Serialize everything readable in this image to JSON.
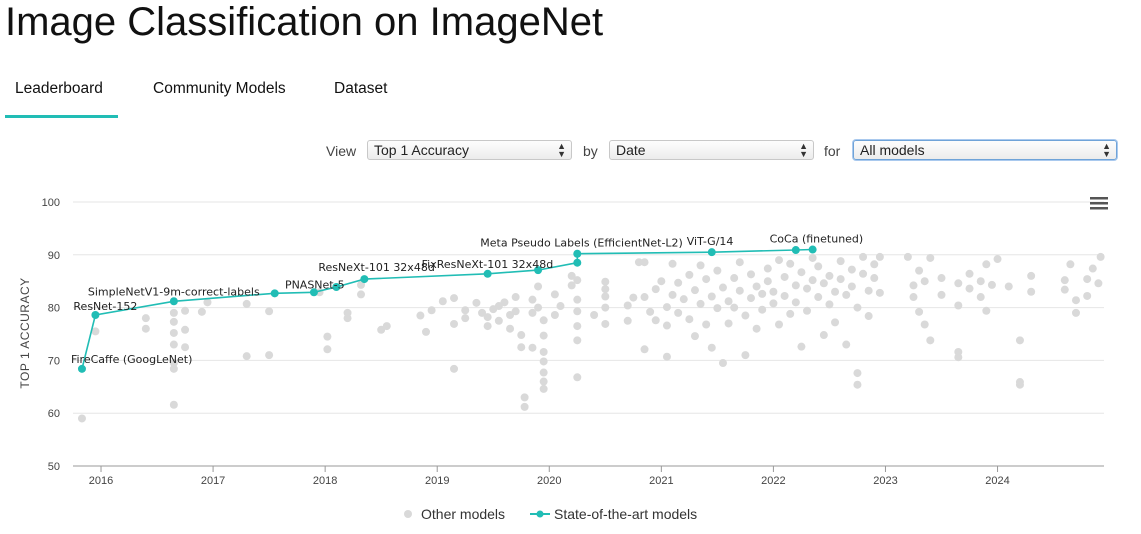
{
  "page": {
    "title": "Image Classification on ImageNet",
    "tabs": [
      {
        "label": "Leaderboard",
        "active": true
      },
      {
        "label": "Community Models",
        "active": false
      },
      {
        "label": "Dataset",
        "active": false
      }
    ]
  },
  "controls": {
    "view_label": "View",
    "view_value": "Top 1 Accuracy",
    "by_label": "by",
    "by_value": "Date",
    "for_label": "for",
    "for_value": "All models"
  },
  "colors": {
    "accent": "#21bdb5",
    "other_models": "#d9d9d9",
    "grid": "#e6e6e6"
  },
  "icons": {
    "chart_menu": "hamburger-menu-icon"
  },
  "chart_data": {
    "type": "scatter",
    "ylabel": "TOP 1 ACCURACY",
    "xlabel": "",
    "ylim": [
      50,
      100
    ],
    "yticks": [
      50,
      60,
      70,
      80,
      90,
      100
    ],
    "xlim": [
      2015.75,
      2024.95
    ],
    "xticks": [
      2016,
      2017,
      2018,
      2019,
      2020,
      2021,
      2022,
      2023,
      2024
    ],
    "grid": true,
    "legend_position": "bottom-center",
    "series": [
      {
        "name": "Other models",
        "kind": "scatter",
        "points": [
          [
            2015.83,
            59.0
          ],
          [
            2015.95,
            75.5
          ],
          [
            2016.4,
            78.0
          ],
          [
            2016.4,
            76.0
          ],
          [
            2016.65,
            61.6
          ],
          [
            2016.65,
            68.4
          ],
          [
            2016.65,
            69.5
          ],
          [
            2016.65,
            73.0
          ],
          [
            2016.65,
            75.2
          ],
          [
            2016.65,
            77.3
          ],
          [
            2016.65,
            79.0
          ],
          [
            2016.75,
            72.5
          ],
          [
            2016.75,
            75.8
          ],
          [
            2016.75,
            79.4
          ],
          [
            2016.9,
            79.2
          ],
          [
            2016.95,
            81.0
          ],
          [
            2017.3,
            70.8
          ],
          [
            2017.3,
            80.7
          ],
          [
            2017.5,
            71.0
          ],
          [
            2017.5,
            79.3
          ],
          [
            2017.95,
            82.9
          ],
          [
            2018.02,
            72.1
          ],
          [
            2018.02,
            74.5
          ],
          [
            2018.2,
            78.0
          ],
          [
            2018.2,
            79.0
          ],
          [
            2018.32,
            82.5
          ],
          [
            2018.32,
            84.3
          ],
          [
            2018.5,
            75.8
          ],
          [
            2018.55,
            76.5
          ],
          [
            2018.85,
            78.5
          ],
          [
            2018.9,
            75.4
          ],
          [
            2018.95,
            79.5
          ],
          [
            2019.05,
            81.2
          ],
          [
            2019.15,
            81.8
          ],
          [
            2019.15,
            76.9
          ],
          [
            2019.15,
            68.4
          ],
          [
            2019.25,
            79.5
          ],
          [
            2019.25,
            78.0
          ],
          [
            2019.35,
            80.9
          ],
          [
            2019.4,
            79.0
          ],
          [
            2019.45,
            78.2
          ],
          [
            2019.45,
            76.5
          ],
          [
            2019.5,
            79.7
          ],
          [
            2019.55,
            80.3
          ],
          [
            2019.55,
            77.5
          ],
          [
            2019.6,
            81.0
          ],
          [
            2019.65,
            78.6
          ],
          [
            2019.65,
            76.0
          ],
          [
            2019.7,
            82.0
          ],
          [
            2019.7,
            79.3
          ],
          [
            2019.75,
            72.5
          ],
          [
            2019.75,
            74.8
          ],
          [
            2019.78,
            61.2
          ],
          [
            2019.78,
            63.0
          ],
          [
            2019.85,
            79.0
          ],
          [
            2019.85,
            81.5
          ],
          [
            2019.85,
            72.4
          ],
          [
            2019.9,
            84.0
          ],
          [
            2019.9,
            80.0
          ],
          [
            2019.95,
            77.6
          ],
          [
            2019.95,
            74.7
          ],
          [
            2019.95,
            66.0
          ],
          [
            2019.95,
            64.6
          ],
          [
            2019.95,
            67.7
          ],
          [
            2019.95,
            69.8
          ],
          [
            2019.95,
            71.6
          ],
          [
            2020.05,
            82.5
          ],
          [
            2020.05,
            78.6
          ],
          [
            2020.1,
            80.3
          ],
          [
            2020.2,
            86.0
          ],
          [
            2020.2,
            84.2
          ],
          [
            2020.25,
            85.2
          ],
          [
            2020.25,
            81.5
          ],
          [
            2020.25,
            79.3
          ],
          [
            2020.25,
            76.5
          ],
          [
            2020.25,
            73.8
          ],
          [
            2020.25,
            66.8
          ],
          [
            2020.4,
            78.6
          ],
          [
            2020.5,
            80.0
          ],
          [
            2020.5,
            82.1
          ],
          [
            2020.5,
            83.5
          ],
          [
            2020.5,
            84.9
          ],
          [
            2020.5,
            76.9
          ],
          [
            2020.7,
            77.5
          ],
          [
            2020.7,
            80.4
          ],
          [
            2020.75,
            81.9
          ],
          [
            2020.8,
            88.6
          ],
          [
            2020.85,
            88.6
          ],
          [
            2020.85,
            72.1
          ],
          [
            2020.85,
            82.0
          ],
          [
            2020.9,
            79.2
          ],
          [
            2020.95,
            77.6
          ],
          [
            2020.95,
            83.5
          ],
          [
            2021.0,
            85.0
          ],
          [
            2021.05,
            80.1
          ],
          [
            2021.05,
            76.6
          ],
          [
            2021.05,
            70.7
          ],
          [
            2021.1,
            88.3
          ],
          [
            2021.1,
            82.4
          ],
          [
            2021.15,
            84.7
          ],
          [
            2021.15,
            79.0
          ],
          [
            2021.2,
            81.6
          ],
          [
            2021.25,
            86.2
          ],
          [
            2021.25,
            77.8
          ],
          [
            2021.3,
            74.6
          ],
          [
            2021.3,
            83.3
          ],
          [
            2021.35,
            80.7
          ],
          [
            2021.35,
            88.0
          ],
          [
            2021.4,
            85.4
          ],
          [
            2021.4,
            76.8
          ],
          [
            2021.45,
            82.1
          ],
          [
            2021.45,
            72.4
          ],
          [
            2021.5,
            79.9
          ],
          [
            2021.5,
            87.0
          ],
          [
            2021.55,
            83.8
          ],
          [
            2021.55,
            69.5
          ],
          [
            2021.6,
            81.2
          ],
          [
            2021.6,
            77.0
          ],
          [
            2021.65,
            85.6
          ],
          [
            2021.65,
            80.0
          ],
          [
            2021.7,
            83.2
          ],
          [
            2021.7,
            88.6
          ],
          [
            2021.75,
            78.5
          ],
          [
            2021.75,
            71.0
          ],
          [
            2021.8,
            81.8
          ],
          [
            2021.8,
            86.3
          ],
          [
            2021.85,
            84.0
          ],
          [
            2021.85,
            76.0
          ],
          [
            2021.9,
            82.6
          ],
          [
            2021.9,
            79.6
          ],
          [
            2021.95,
            87.4
          ],
          [
            2021.95,
            85.0
          ],
          [
            2022.0,
            83.0
          ],
          [
            2022.0,
            80.8
          ],
          [
            2022.05,
            89.0
          ],
          [
            2022.05,
            76.8
          ],
          [
            2022.1,
            85.8
          ],
          [
            2022.1,
            82.2
          ],
          [
            2022.15,
            88.3
          ],
          [
            2022.15,
            78.8
          ],
          [
            2022.2,
            84.2
          ],
          [
            2022.2,
            81.0
          ],
          [
            2022.25,
            86.7
          ],
          [
            2022.25,
            72.6
          ],
          [
            2022.3,
            83.6
          ],
          [
            2022.3,
            79.4
          ],
          [
            2022.35,
            89.4
          ],
          [
            2022.35,
            85.2
          ],
          [
            2022.4,
            82.0
          ],
          [
            2022.4,
            87.8
          ],
          [
            2022.45,
            84.6
          ],
          [
            2022.45,
            74.8
          ],
          [
            2022.5,
            80.6
          ],
          [
            2022.5,
            86.0
          ],
          [
            2022.55,
            83.0
          ],
          [
            2022.55,
            77.2
          ],
          [
            2022.6,
            88.8
          ],
          [
            2022.6,
            85.4
          ],
          [
            2022.65,
            82.4
          ],
          [
            2022.65,
            73.0
          ],
          [
            2022.7,
            87.2
          ],
          [
            2022.7,
            84.0
          ],
          [
            2022.75,
            80.0
          ],
          [
            2022.75,
            65.4
          ],
          [
            2022.75,
            67.6
          ],
          [
            2022.8,
            89.6
          ],
          [
            2022.8,
            86.4
          ],
          [
            2022.85,
            83.2
          ],
          [
            2022.85,
            78.4
          ],
          [
            2022.9,
            85.6
          ],
          [
            2022.9,
            88.2
          ],
          [
            2022.95,
            82.8
          ],
          [
            2022.95,
            89.6
          ],
          [
            2023.2,
            89.6
          ],
          [
            2023.25,
            84.2
          ],
          [
            2023.25,
            82.0
          ],
          [
            2023.3,
            87.0
          ],
          [
            2023.3,
            79.2
          ],
          [
            2023.35,
            85.0
          ],
          [
            2023.35,
            76.8
          ],
          [
            2023.4,
            73.8
          ],
          [
            2023.4,
            89.4
          ],
          [
            2023.5,
            85.6
          ],
          [
            2023.5,
            82.4
          ],
          [
            2023.65,
            84.6
          ],
          [
            2023.65,
            80.4
          ],
          [
            2023.65,
            71.6
          ],
          [
            2023.65,
            70.6
          ],
          [
            2023.75,
            86.4
          ],
          [
            2023.75,
            83.6
          ],
          [
            2023.85,
            85.0
          ],
          [
            2023.85,
            82.0
          ],
          [
            2023.9,
            88.2
          ],
          [
            2023.9,
            79.4
          ],
          [
            2023.95,
            84.3
          ],
          [
            2024.0,
            89.2
          ],
          [
            2024.1,
            84.0
          ],
          [
            2024.2,
            73.8
          ],
          [
            2024.2,
            65.4
          ],
          [
            2024.2,
            65.9
          ],
          [
            2024.3,
            86.0
          ],
          [
            2024.3,
            83.0
          ],
          [
            2024.6,
            85.2
          ],
          [
            2024.6,
            83.4
          ],
          [
            2024.65,
            88.2
          ],
          [
            2024.7,
            81.4
          ],
          [
            2024.7,
            79.0
          ],
          [
            2024.8,
            85.4
          ],
          [
            2024.8,
            82.2
          ],
          [
            2024.85,
            87.4
          ],
          [
            2024.9,
            84.6
          ],
          [
            2024.92,
            89.6
          ]
        ]
      },
      {
        "name": "State-of-the-art models",
        "kind": "line",
        "points": [
          {
            "x": 2015.83,
            "y": 68.4,
            "label": "FireCaffe (GoogLeNet)"
          },
          {
            "x": 2015.95,
            "y": 78.6,
            "label": "ResNet-152"
          },
          {
            "x": 2016.65,
            "y": 81.2,
            "label": "SimpleNetV1-9m-correct-labels"
          },
          {
            "x": 2017.55,
            "y": 82.7,
            "label": ""
          },
          {
            "x": 2017.9,
            "y": 82.9,
            "label": "PNASNet-5"
          },
          {
            "x": 2018.1,
            "y": 83.9,
            "label": ""
          },
          {
            "x": 2018.35,
            "y": 85.4,
            "label": "ResNeXt-101 32x48d"
          },
          {
            "x": 2019.45,
            "y": 86.4,
            "label": "FixResNeXt-101 32x48d"
          },
          {
            "x": 2019.9,
            "y": 87.1,
            "label": ""
          },
          {
            "x": 2020.25,
            "y": 88.5,
            "label": ""
          },
          {
            "x": 2020.25,
            "y": 90.2,
            "label": "Meta Pseudo Labels (EfficientNet-L2)"
          },
          {
            "x": 2021.45,
            "y": 90.5,
            "label": "ViT-G/14"
          },
          {
            "x": 2022.2,
            "y": 90.9,
            "label": ""
          },
          {
            "x": 2022.35,
            "y": 91.0,
            "label": "CoCa (finetuned)"
          }
        ]
      }
    ]
  }
}
